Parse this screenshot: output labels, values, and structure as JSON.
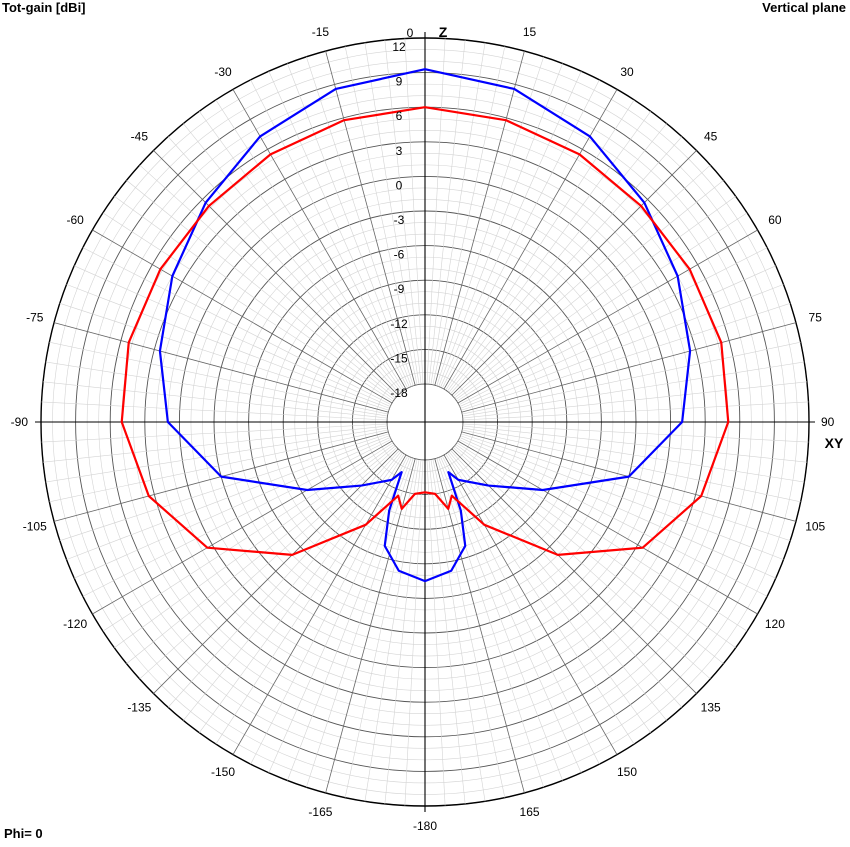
{
  "header": {
    "left_title": "Tot-gain [dBi]",
    "right_title": "Vertical plane"
  },
  "footer": {
    "phi_label": "Phi= 0"
  },
  "chart_data": {
    "type": "polar-line",
    "title": "Vertical plane",
    "radial_label": "Tot-gain [dBi]",
    "axis_names": {
      "top": "Z",
      "right": "XY"
    },
    "radial_range": [
      -18,
      12
    ],
    "radial_ticks": [
      12,
      9,
      6,
      3,
      0,
      -3,
      -6,
      -9,
      -12,
      -15,
      -18
    ],
    "angle_ticks": [
      0,
      15,
      30,
      45,
      60,
      75,
      90,
      105,
      120,
      135,
      150,
      165,
      -180,
      -165,
      -150,
      -135,
      -120,
      -105,
      -90,
      -75,
      -60,
      -45,
      -30,
      -15
    ],
    "grid": true,
    "series": [
      {
        "color": "#0000ff",
        "theta": [
          0,
          15,
          30,
          45,
          60,
          75,
          90,
          105,
          120,
          135,
          150,
          155,
          158,
          162,
          170,
          180,
          -170,
          -162,
          -158,
          -155,
          -150,
          -135,
          -120,
          -105,
          -90,
          -75,
          -60,
          -45,
          -30,
          -15
        ],
        "gain": [
          9.3,
          8.6,
          7.3,
          5.6,
          4.0,
          2.5,
          1.0,
          -3.0,
          -9.5,
          -13.5,
          -15.5,
          -16.5,
          -13.0,
          -10.0,
          -8.2,
          -7.5,
          -8.2,
          -10.0,
          -13.0,
          -16.5,
          -15.5,
          -13.5,
          -9.5,
          -3.0,
          1.0,
          2.5,
          4.0,
          5.6,
          7.3,
          8.6
        ]
      },
      {
        "color": "#ff0000",
        "theta": [
          0,
          15,
          30,
          45,
          60,
          75,
          90,
          105,
          120,
          135,
          150,
          160,
          165,
          172,
          180,
          -172,
          -165,
          -160,
          -150,
          -135,
          -120,
          -105,
          -90,
          -75,
          -60,
          -45,
          -30,
          -15
        ],
        "gain": [
          6.0,
          5.8,
          5.5,
          5.2,
          5.2,
          5.3,
          5.0,
          3.5,
          0.5,
          -5.0,
          -11.0,
          -14.5,
          -13.5,
          -15.0,
          -15.2,
          -15.0,
          -13.5,
          -14.5,
          -11.0,
          -5.0,
          0.5,
          3.5,
          5.0,
          5.3,
          5.2,
          5.2,
          5.5,
          5.8
        ]
      }
    ]
  }
}
